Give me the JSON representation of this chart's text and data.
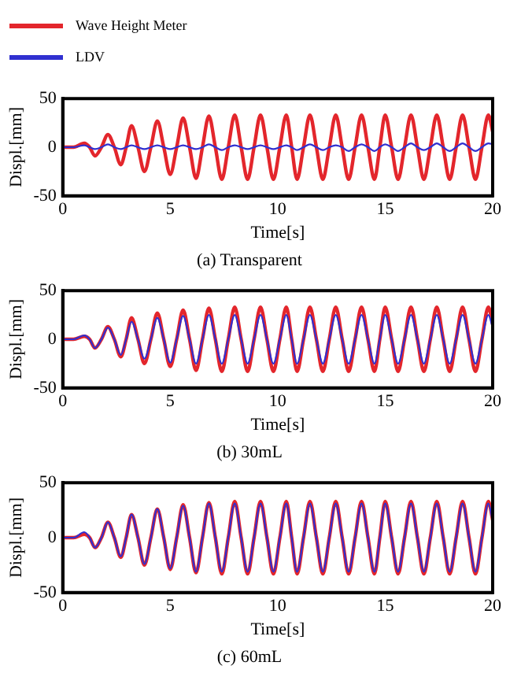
{
  "chart_data": [
    {
      "type": "line",
      "title": "(a) Transparent",
      "xlabel": "Time[s]",
      "ylabel": "Displ.[mm]",
      "legend": "top left",
      "grid": false,
      "x": [
        0,
        0.5,
        1.0,
        1.25,
        1.5,
        1.8,
        2.1,
        2.4,
        2.7,
        2.95,
        3.2,
        3.5,
        3.8,
        4.1,
        4.4,
        4.7,
        5.0,
        5.3,
        5.6,
        5.9,
        6.2,
        6.5,
        6.8,
        7.1,
        7.4,
        7.7,
        8.0,
        8.3,
        8.6,
        8.9,
        9.2,
        9.5,
        9.8,
        10.1,
        10.4,
        10.65,
        10.9,
        11.2,
        11.5,
        11.8,
        12.1,
        12.4,
        12.7,
        13.0,
        13.3,
        13.6,
        13.9,
        14.2,
        14.5,
        14.75,
        15.0,
        15.3,
        15.6,
        15.9,
        16.2,
        16.5,
        16.8,
        17.1,
        17.4,
        17.7,
        18.0,
        18.3,
        18.6,
        18.9,
        19.2,
        19.5,
        19.8,
        20.0
      ],
      "xlim": [
        0,
        20
      ],
      "xticks": [
        0,
        5,
        10,
        15,
        20
      ],
      "ylim": [
        -50,
        50
      ],
      "yticks": [
        -50,
        0,
        50
      ],
      "series": [
        {
          "name": "Wave Height Meter",
          "color": "#e3262c",
          "values": [
            0,
            0,
            4,
            0,
            -9,
            0,
            13,
            0,
            -18,
            0,
            22,
            0,
            -25,
            0,
            27,
            0,
            -28,
            0,
            30,
            0,
            -32,
            0,
            32,
            0,
            -33,
            0,
            33,
            0,
            -33,
            0,
            33,
            0,
            -33,
            0,
            33,
            0,
            -33,
            0,
            33,
            0,
            -33,
            0,
            33,
            0,
            -33,
            0,
            33,
            0,
            -33,
            0,
            33,
            0,
            -33,
            0,
            33,
            0,
            -33,
            0,
            33,
            0,
            -33,
            0,
            33,
            0,
            -33,
            0,
            33,
            16
          ]
        },
        {
          "name": "LDV",
          "color": "#3030d0",
          "values": [
            0,
            0,
            2,
            0,
            -2,
            0,
            3,
            0,
            -2,
            0,
            2,
            0,
            -2,
            0,
            2,
            0,
            -2,
            0,
            2,
            0,
            -2,
            0,
            3,
            0,
            -3,
            0,
            2,
            0,
            -2,
            0,
            2,
            0,
            -2,
            0,
            2,
            0,
            -3,
            0,
            3,
            0,
            -3,
            0,
            2,
            0,
            -4,
            0,
            3,
            0,
            -4,
            0,
            3,
            0,
            -4,
            0,
            4,
            0,
            -3,
            0,
            4,
            0,
            -4,
            0,
            4,
            0,
            -4,
            0,
            4,
            3
          ]
        }
      ]
    },
    {
      "type": "line",
      "title": "(b) 30mL",
      "xlabel": "Time[s]",
      "ylabel": "Displ.[mm]",
      "grid": false,
      "x": [
        0,
        0.5,
        1.0,
        1.25,
        1.5,
        1.8,
        2.1,
        2.4,
        2.7,
        2.95,
        3.2,
        3.5,
        3.8,
        4.1,
        4.4,
        4.7,
        5.0,
        5.3,
        5.6,
        5.9,
        6.2,
        6.5,
        6.8,
        7.1,
        7.4,
        7.7,
        8.0,
        8.3,
        8.6,
        8.9,
        9.2,
        9.5,
        9.8,
        10.1,
        10.4,
        10.65,
        10.9,
        11.2,
        11.5,
        11.8,
        12.1,
        12.4,
        12.7,
        13.0,
        13.3,
        13.6,
        13.9,
        14.2,
        14.5,
        14.75,
        15.0,
        15.3,
        15.6,
        15.9,
        16.2,
        16.5,
        16.8,
        17.1,
        17.4,
        17.7,
        18.0,
        18.3,
        18.6,
        18.9,
        19.2,
        19.5,
        19.8,
        20.0
      ],
      "xlim": [
        0,
        20
      ],
      "xticks": [
        0,
        5,
        10,
        15,
        20
      ],
      "ylim": [
        -50,
        50
      ],
      "yticks": [
        -50,
        0,
        50
      ],
      "series": [
        {
          "color": "#e3262c",
          "values": [
            0,
            0,
            3,
            0,
            -9,
            0,
            13,
            0,
            -18,
            0,
            22,
            0,
            -25,
            0,
            27,
            0,
            -28,
            0,
            30,
            0,
            -32,
            0,
            32,
            0,
            -33,
            0,
            33,
            0,
            -33,
            0,
            33,
            0,
            -33,
            0,
            33,
            0,
            -33,
            0,
            33,
            0,
            -33,
            0,
            33,
            0,
            -33,
            0,
            33,
            0,
            -33,
            0,
            33,
            0,
            -33,
            0,
            33,
            0,
            -33,
            0,
            33,
            0,
            -33,
            0,
            33,
            0,
            -33,
            0,
            33,
            16
          ]
        },
        {
          "color": "#3030d0",
          "values": [
            0,
            0,
            4,
            0,
            -9,
            0,
            12,
            0,
            -16,
            0,
            18,
            0,
            -20,
            0,
            22,
            0,
            -24,
            0,
            24,
            0,
            -25,
            0,
            25,
            0,
            -25,
            0,
            25,
            0,
            -25,
            0,
            25,
            0,
            -25,
            0,
            25,
            0,
            -25,
            0,
            25,
            0,
            -25,
            0,
            25,
            0,
            -25,
            0,
            25,
            0,
            -25,
            0,
            25,
            0,
            -25,
            0,
            25,
            0,
            -25,
            0,
            25,
            0,
            -25,
            0,
            25,
            0,
            -25,
            0,
            25,
            12
          ]
        }
      ]
    },
    {
      "type": "line",
      "title": "(c) 60mL",
      "xlabel": "Time[s]",
      "ylabel": "Displ.[mm]",
      "grid": false,
      "x": [
        0,
        0.5,
        1.0,
        1.25,
        1.5,
        1.8,
        2.1,
        2.4,
        2.7,
        2.95,
        3.2,
        3.5,
        3.8,
        4.1,
        4.4,
        4.7,
        5.0,
        5.3,
        5.6,
        5.9,
        6.2,
        6.5,
        6.8,
        7.1,
        7.4,
        7.7,
        8.0,
        8.3,
        8.6,
        8.9,
        9.2,
        9.5,
        9.8,
        10.1,
        10.4,
        10.65,
        10.9,
        11.2,
        11.5,
        11.8,
        12.1,
        12.4,
        12.7,
        13.0,
        13.3,
        13.6,
        13.9,
        14.2,
        14.5,
        14.75,
        15.0,
        15.3,
        15.6,
        15.9,
        16.2,
        16.5,
        16.8,
        17.1,
        17.4,
        17.7,
        18.0,
        18.3,
        18.6,
        18.9,
        19.2,
        19.5,
        19.8,
        20.0
      ],
      "xlim": [
        0,
        20
      ],
      "xticks": [
        0,
        5,
        10,
        15,
        20
      ],
      "ylim": [
        -50,
        50
      ],
      "yticks": [
        -50,
        0,
        50
      ],
      "series": [
        {
          "color": "#e3262c",
          "values": [
            0,
            0,
            3,
            0,
            -9,
            0,
            14,
            0,
            -18,
            0,
            21,
            0,
            -25,
            0,
            26,
            0,
            -29,
            0,
            30,
            0,
            -32,
            0,
            32,
            0,
            -33,
            0,
            33,
            0,
            -33,
            0,
            33,
            0,
            -33,
            0,
            33,
            0,
            -33,
            0,
            33,
            0,
            -33,
            0,
            33,
            0,
            -33,
            0,
            33,
            0,
            -33,
            0,
            33,
            0,
            -33,
            0,
            33,
            0,
            -33,
            0,
            33,
            0,
            -33,
            0,
            33,
            0,
            -33,
            0,
            33,
            16
          ]
        },
        {
          "color": "#3030d0",
          "values": [
            0,
            0,
            5,
            0,
            -9,
            0,
            14,
            0,
            -17,
            0,
            21,
            0,
            -24,
            0,
            26,
            0,
            -28,
            0,
            29,
            0,
            -31,
            0,
            31,
            0,
            -31,
            0,
            31,
            0,
            -31,
            0,
            31,
            0,
            -31,
            0,
            31,
            0,
            -31,
            0,
            31,
            0,
            -31,
            0,
            31,
            0,
            -31,
            0,
            31,
            0,
            -31,
            0,
            31,
            0,
            -31,
            0,
            31,
            0,
            -31,
            0,
            31,
            0,
            -31,
            0,
            31,
            0,
            -31,
            0,
            31,
            15
          ]
        }
      ]
    }
  ]
}
